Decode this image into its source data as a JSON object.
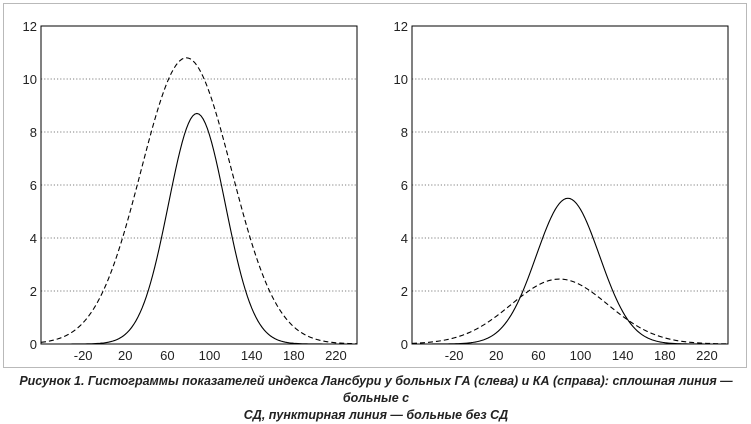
{
  "chart_data": [
    {
      "type": "line",
      "panel": "left",
      "ylim": [
        0,
        12
      ],
      "xlim": [
        -60,
        240
      ],
      "yticks": [
        0,
        2,
        4,
        6,
        8,
        10,
        12
      ],
      "xticks": [
        -20,
        20,
        60,
        100,
        140,
        180,
        220
      ],
      "grid": "horizontal dotted",
      "series": [
        {
          "style": "solid",
          "color": "#000000",
          "mean": 88,
          "sd": 27,
          "peak": 8.7
        },
        {
          "style": "dashed",
          "color": "#000000",
          "mean": 78,
          "sd": 43,
          "peak": 10.8
        }
      ]
    },
    {
      "type": "line",
      "panel": "right",
      "ylim": [
        0,
        12
      ],
      "xlim": [
        -60,
        240
      ],
      "yticks": [
        0,
        2,
        4,
        6,
        8,
        10,
        12
      ],
      "xticks": [
        -20,
        20,
        60,
        100,
        140,
        180,
        220
      ],
      "grid": "horizontal dotted",
      "series": [
        {
          "style": "solid",
          "color": "#000000",
          "mean": 88,
          "sd": 30,
          "peak": 5.5
        },
        {
          "style": "dashed",
          "color": "#000000",
          "mean": 80,
          "sd": 46,
          "peak": 2.45
        }
      ]
    }
  ],
  "caption": {
    "line1": "Рисунок 1. Гистограммы показателей индекса Лансбури у больных ГА (слева) и КА (справа): сплошная линия — больные с",
    "line2": "СД, пунктирная линия — больные без СД"
  }
}
